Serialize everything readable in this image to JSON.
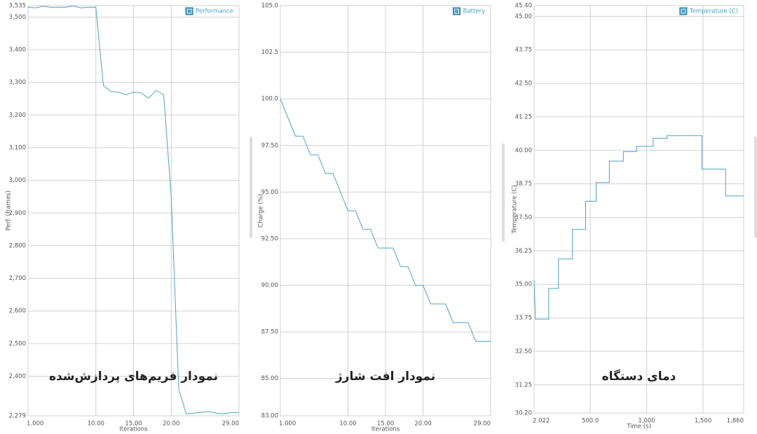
{
  "chart_data": [
    {
      "type": "line",
      "xlabel": "Iterations",
      "ylabel": "Perf. (frames)",
      "annotation": "نمودار فریم‌های پردازش‌شده",
      "legend": "upper right",
      "grid": true,
      "x": [
        1,
        2,
        3,
        4,
        5,
        6,
        7,
        8,
        9,
        10,
        11,
        12,
        13,
        14,
        15,
        16,
        17,
        18,
        19,
        20,
        21,
        22,
        23,
        24,
        25,
        26,
        27,
        28,
        29
      ],
      "series": [
        {
          "name": "Performance",
          "color": "#4ba3c7",
          "values": [
            3530,
            3528,
            3533,
            3530,
            3530,
            3530,
            3534,
            3528,
            3530,
            3530,
            3290,
            3272,
            3270,
            3262,
            3270,
            3268,
            3252,
            3275,
            3262,
            2950,
            2360,
            2285,
            2287,
            2290,
            2292,
            2287,
            2285,
            2289,
            2289
          ]
        }
      ],
      "xlim": [
        1,
        29
      ],
      "xticks": [
        {
          "value": 1,
          "label": "1.000"
        },
        {
          "value": 10,
          "label": "10.00"
        },
        {
          "value": 15,
          "label": "15.00"
        },
        {
          "value": 20,
          "label": "20.00"
        },
        {
          "value": 29,
          "label": "29.00"
        }
      ],
      "ylim": [
        2279,
        3535
      ],
      "yticks": [
        {
          "value": 2279,
          "label": "2,279"
        },
        {
          "value": 2400,
          "label": "2,400"
        },
        {
          "value": 2500,
          "label": "2,500"
        },
        {
          "value": 2600,
          "label": "2,600"
        },
        {
          "value": 2700,
          "label": "2,700"
        },
        {
          "value": 2800,
          "label": "2,800"
        },
        {
          "value": 2900,
          "label": "2,900"
        },
        {
          "value": 3000,
          "label": "3,000"
        },
        {
          "value": 3100,
          "label": "3,100"
        },
        {
          "value": 3200,
          "label": "3,200"
        },
        {
          "value": 3300,
          "label": "3,300"
        },
        {
          "value": 3400,
          "label": "3,400"
        },
        {
          "value": 3500,
          "label": "3,500"
        },
        {
          "value": 3535,
          "label": "3,535"
        }
      ]
    },
    {
      "type": "line",
      "xlabel": "Iterations",
      "ylabel": "Charge (%)",
      "annotation": "نمودار افت شارژ",
      "legend": "upper right",
      "grid": true,
      "x": [
        1,
        2,
        3,
        4,
        5,
        6,
        7,
        8,
        9,
        10,
        11,
        12,
        13,
        14,
        15,
        16,
        17,
        18,
        19,
        20,
        21,
        22,
        23,
        24,
        25,
        26,
        27,
        28,
        29
      ],
      "series": [
        {
          "name": "Battery",
          "color": "#4ba3c7",
          "values": [
            100,
            99,
            98,
            98,
            97,
            97,
            96,
            96,
            95,
            94,
            94,
            93,
            93,
            92,
            92,
            92,
            91,
            91,
            90,
            90,
            89,
            89,
            89,
            88,
            88,
            88,
            87,
            87,
            87
          ]
        }
      ],
      "xlim": [
        1,
        29
      ],
      "xticks": [
        {
          "value": 1,
          "label": "1.000"
        },
        {
          "value": 10,
          "label": "10.00"
        },
        {
          "value": 15,
          "label": "15.00"
        },
        {
          "value": 20,
          "label": "20.00"
        },
        {
          "value": 29,
          "label": "29.00"
        }
      ],
      "ylim": [
        83,
        105
      ],
      "yticks": [
        {
          "value": 83,
          "label": "83.00"
        },
        {
          "value": 85,
          "label": "85.00"
        },
        {
          "value": 87.5,
          "label": "87.50"
        },
        {
          "value": 90,
          "label": "90.00"
        },
        {
          "value": 92.5,
          "label": "92.50"
        },
        {
          "value": 95,
          "label": "95.00"
        },
        {
          "value": 97.5,
          "label": "97.50"
        },
        {
          "value": 100,
          "label": "100.0"
        },
        102.5,
        {
          "value": 105,
          "label": "105.0"
        }
      ]
    },
    {
      "type": "line",
      "xlabel": "Time (s)",
      "ylabel": "Temperature (C)",
      "annotation": "دمای  دستگاه",
      "legend": "upper right",
      "grid": true,
      "x": [
        2.022,
        14,
        131,
        131,
        218,
        218,
        342,
        342,
        459,
        459,
        552,
        552,
        669,
        669,
        793,
        793,
        910,
        910,
        1058,
        1058,
        1182,
        1182,
        1490,
        1490,
        1700,
        1700,
        1860
      ],
      "series": [
        {
          "name": "Temperature (C)",
          "color": "#4ba3c7",
          "values": [
            35.15,
            33.7,
            33.7,
            34.85,
            34.85,
            35.95,
            35.95,
            37.05,
            37.05,
            38.1,
            38.1,
            38.8,
            38.8,
            39.6,
            39.6,
            39.95,
            39.95,
            40.15,
            40.15,
            40.45,
            40.45,
            40.55,
            40.55,
            39.3,
            39.3,
            38.3,
            38.3
          ]
        }
      ],
      "xlim": [
        2.022,
        1860
      ],
      "xticks": [
        2.022,
        {
          "value": 500,
          "label": "500.0"
        },
        {
          "value": 1000,
          "label": "1,000"
        },
        {
          "value": 1500,
          "label": "1,500"
        },
        {
          "value": 1860,
          "label": "1,860"
        }
      ],
      "ylim": [
        30.2,
        45.4
      ],
      "yticks": [
        {
          "value": 30.2,
          "label": "30.20"
        },
        31.25,
        {
          "value": 32.5,
          "label": "32.50"
        },
        33.75,
        {
          "value": 35,
          "label": "35.00"
        },
        36.25,
        {
          "value": 37.5,
          "label": "37.50"
        },
        38.75,
        {
          "value": 40,
          "label": "40.00"
        },
        41.25,
        {
          "value": 42.5,
          "label": "42.50"
        },
        43.75,
        {
          "value": 45,
          "label": "45.00"
        },
        {
          "value": 45.4,
          "label": "45.40"
        }
      ]
    }
  ]
}
